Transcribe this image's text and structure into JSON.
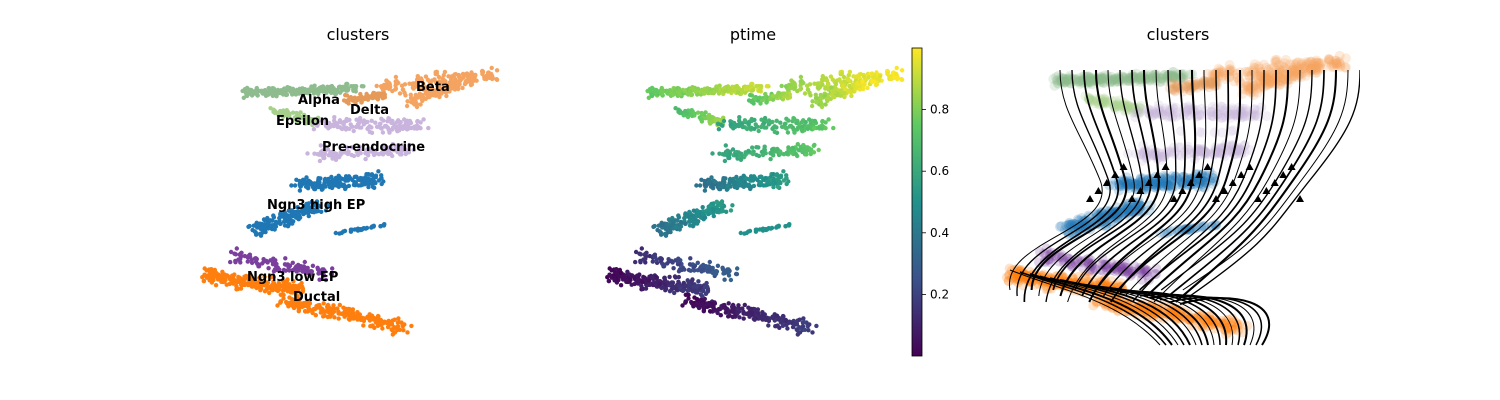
{
  "chart_data": [
    {
      "type": "scatter",
      "title": "clusters",
      "color_by": "clusters",
      "cluster_labels": [
        {
          "name": "Beta",
          "color": "#f4a460"
        },
        {
          "name": "Alpha",
          "color": "#8fbc8f"
        },
        {
          "name": "Delta",
          "color": "#e59a5a"
        },
        {
          "name": "Epsilon",
          "color": "#a7d08c"
        },
        {
          "name": "Pre-endocrine",
          "color": "#c8b4dc"
        },
        {
          "name": "Ngn3 high EP",
          "color": "#1f77b4"
        },
        {
          "name": "Ngn3 low EP",
          "color": "#7b3f9e"
        },
        {
          "name": "Ductal",
          "color": "#ff7f0e"
        }
      ],
      "axes": "off",
      "legend": "on data"
    },
    {
      "type": "scatter",
      "title": "ptime",
      "color_by": "ptime",
      "colormap": "viridis",
      "colorbar": {
        "ticks": [
          "0.2",
          "0.4",
          "0.6",
          "0.8"
        ],
        "tick_values": [
          0.2,
          0.4,
          0.6,
          0.8
        ],
        "range": [
          0.0,
          1.0
        ]
      },
      "axes": "off"
    },
    {
      "type": "scatter",
      "title": "clusters",
      "color_by": "clusters",
      "overlay": "velocity streamlines",
      "axes": "off"
    }
  ]
}
